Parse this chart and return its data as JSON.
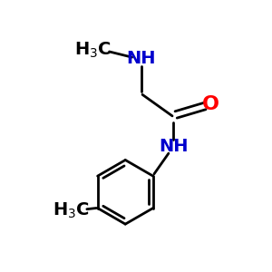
{
  "background_color": "#ffffff",
  "bond_color": "#000000",
  "N_color": "#0000cd",
  "O_color": "#ff0000",
  "font_size_label": 14,
  "line_width": 2.0,
  "figsize": [
    3.0,
    3.0
  ],
  "dpi": 100,
  "xlim": [
    0,
    10
  ],
  "ylim": [
    0,
    10
  ]
}
